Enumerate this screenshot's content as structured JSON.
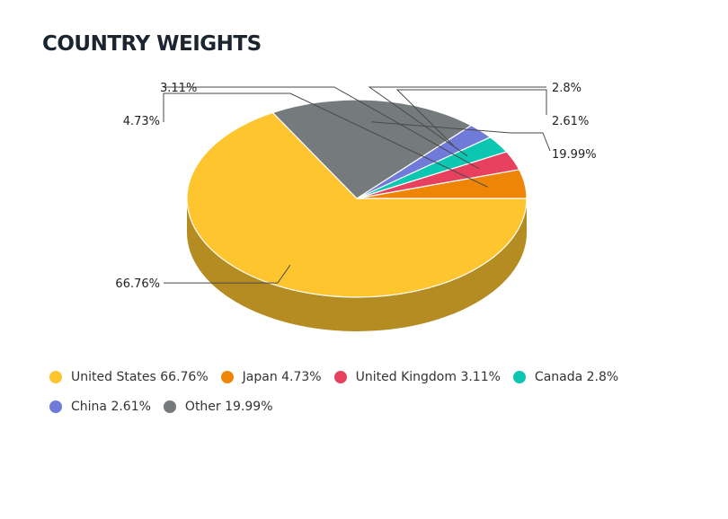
{
  "title": "COUNTRY WEIGHTS",
  "chart_data": {
    "type": "pie",
    "title": "COUNTRY WEIGHTS",
    "style": "3d",
    "legend_position": "bottom",
    "slices": [
      {
        "name": "United States",
        "value": 66.76,
        "label": "66.76%",
        "legend": "United States 66.76%",
        "color": "#ffc52e"
      },
      {
        "name": "Japan",
        "value": 4.73,
        "label": "4.73%",
        "legend": "Japan 4.73%",
        "color": "#ef8506"
      },
      {
        "name": "United Kingdom",
        "value": 3.11,
        "label": "3.11%",
        "legend": "United Kingdom 3.11%",
        "color": "#e8415f"
      },
      {
        "name": "Canada",
        "value": 2.8,
        "label": "2.8%",
        "legend": "Canada 2.8%",
        "color": "#0bc6b1"
      },
      {
        "name": "China",
        "value": 2.61,
        "label": "2.61%",
        "legend": "China 2.61%",
        "color": "#6f7ad9"
      },
      {
        "name": "Other",
        "value": 19.99,
        "label": "19.99%",
        "legend": "Other 19.99%",
        "color": "#757a7c"
      }
    ]
  }
}
